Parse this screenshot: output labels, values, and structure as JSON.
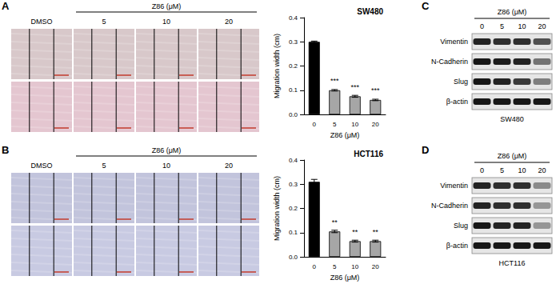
{
  "chart_data": [
    {
      "type": "bar",
      "panel_label": "A",
      "title": "SW480",
      "x_label": "Z86 (μM)",
      "y_label": "Migration width (cm)",
      "categories": [
        "0",
        "5",
        "10",
        "20"
      ],
      "values": [
        0.3,
        0.1,
        0.075,
        0.06
      ],
      "errors": [
        0.003,
        0.003,
        0.004,
        0.003
      ],
      "colors": [
        "#000000",
        "#a6a6a6",
        "#a6a6a6",
        "#a6a6a6"
      ],
      "annotations": [
        {
          "category": "5",
          "text": "***"
        },
        {
          "category": "10",
          "text": "***"
        },
        {
          "category": "20",
          "text": "***"
        }
      ],
      "ylim": [
        0,
        0.4
      ],
      "yticks": [
        {
          "value": 0,
          "label": "0.0"
        },
        0.1,
        0.2,
        0.3,
        0.4
      ],
      "grid": false
    },
    {
      "type": "bar",
      "panel_label": "B",
      "title": "HCT116",
      "x_label": "Z86 (μM)",
      "y_label": "Migration width (cm)",
      "categories": [
        "0",
        "5",
        "10",
        "20"
      ],
      "values": [
        0.31,
        0.105,
        0.065,
        0.065
      ],
      "errors": [
        0.01,
        0.005,
        0.004,
        0.004
      ],
      "colors": [
        "#000000",
        "#a6a6a6",
        "#a6a6a6",
        "#a6a6a6"
      ],
      "annotations": [
        {
          "category": "5",
          "text": "**"
        },
        {
          "category": "10",
          "text": "**"
        },
        {
          "category": "20",
          "text": "**"
        }
      ],
      "ylim": [
        0,
        0.4
      ],
      "yticks": [
        {
          "value": 0,
          "label": "0.0"
        },
        0.1,
        0.2,
        0.3,
        0.4
      ],
      "grid": false
    }
  ],
  "wound_panels": [
    {
      "panel_label": "A",
      "control": "DMSO",
      "group": "Z86 (μM)",
      "doses": [
        "5",
        "10",
        "20"
      ],
      "row_colors": [
        "#d8c8ca",
        "#e4c6d0"
      ]
    },
    {
      "panel_label": "B",
      "control": "DMSO",
      "group": "Z86 (μM)",
      "doses": [
        "5",
        "10",
        "20"
      ],
      "row_colors": [
        "#c2c4dc",
        "#c8cae2"
      ]
    }
  ],
  "blots": [
    {
      "panel_label": "C",
      "group": "Z86 (μM)",
      "lanes": [
        "0",
        "5",
        "10",
        "20"
      ],
      "cell_line": "SW480",
      "proteins": [
        {
          "name": "Vimentin",
          "intensity": [
            0.85,
            0.8,
            0.8,
            0.65
          ]
        },
        {
          "name": "N-Cadherin",
          "intensity": [
            0.9,
            0.88,
            0.85,
            0.5
          ]
        },
        {
          "name": "Slug",
          "intensity": [
            0.9,
            0.85,
            0.75,
            0.45
          ]
        },
        {
          "name": "β-actin",
          "intensity": [
            0.9,
            0.9,
            0.9,
            0.9
          ]
        }
      ]
    },
    {
      "panel_label": "D",
      "group": "Z86 (μM)",
      "lanes": [
        "0",
        "5",
        "10",
        "20"
      ],
      "cell_line": "HCT116",
      "proteins": [
        {
          "name": "Vimentin",
          "intensity": [
            0.85,
            0.8,
            0.8,
            0.4
          ]
        },
        {
          "name": "N-Cadherin",
          "intensity": [
            0.85,
            0.8,
            0.8,
            0.35
          ]
        },
        {
          "name": "Slug",
          "intensity": [
            0.9,
            0.85,
            0.85,
            0.35
          ]
        },
        {
          "name": "β-actin",
          "intensity": [
            0.9,
            0.9,
            0.9,
            0.9
          ]
        }
      ]
    }
  ]
}
